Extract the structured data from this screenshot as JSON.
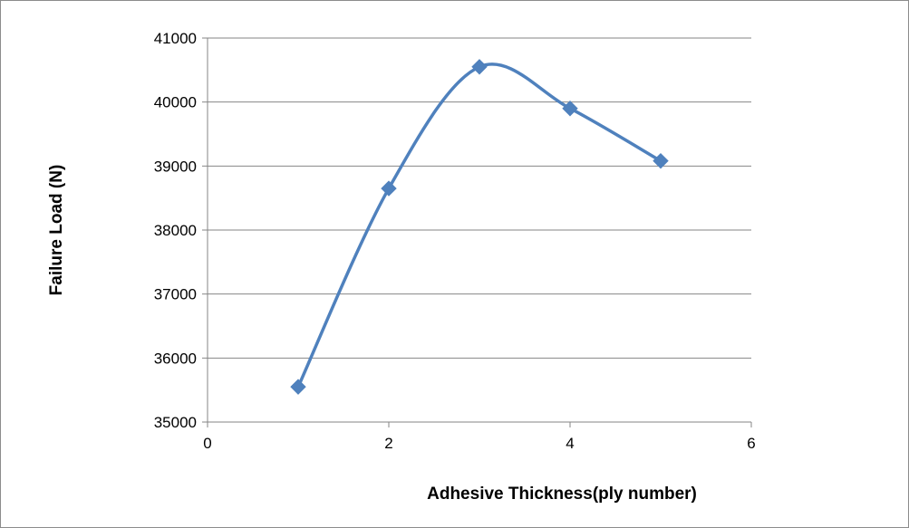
{
  "chart_data": {
    "type": "scatter",
    "title": "",
    "xlabel": "Adhesive Thickness(ply number)",
    "ylabel": "Failure Load (N)",
    "xlim": [
      0,
      6
    ],
    "ylim": [
      35000,
      41000
    ],
    "x_ticks": [
      0,
      2,
      4,
      6
    ],
    "y_ticks": [
      35000,
      36000,
      37000,
      38000,
      39000,
      40000,
      41000
    ],
    "grid": "horizontal",
    "legend": "none",
    "line_style": "smoothed",
    "marker": "diamond",
    "color": "#4f81bd",
    "series": [
      {
        "x": [
          1,
          2,
          3,
          4,
          5
        ],
        "values": [
          35550,
          38650,
          40550,
          39900,
          39080
        ]
      }
    ]
  }
}
